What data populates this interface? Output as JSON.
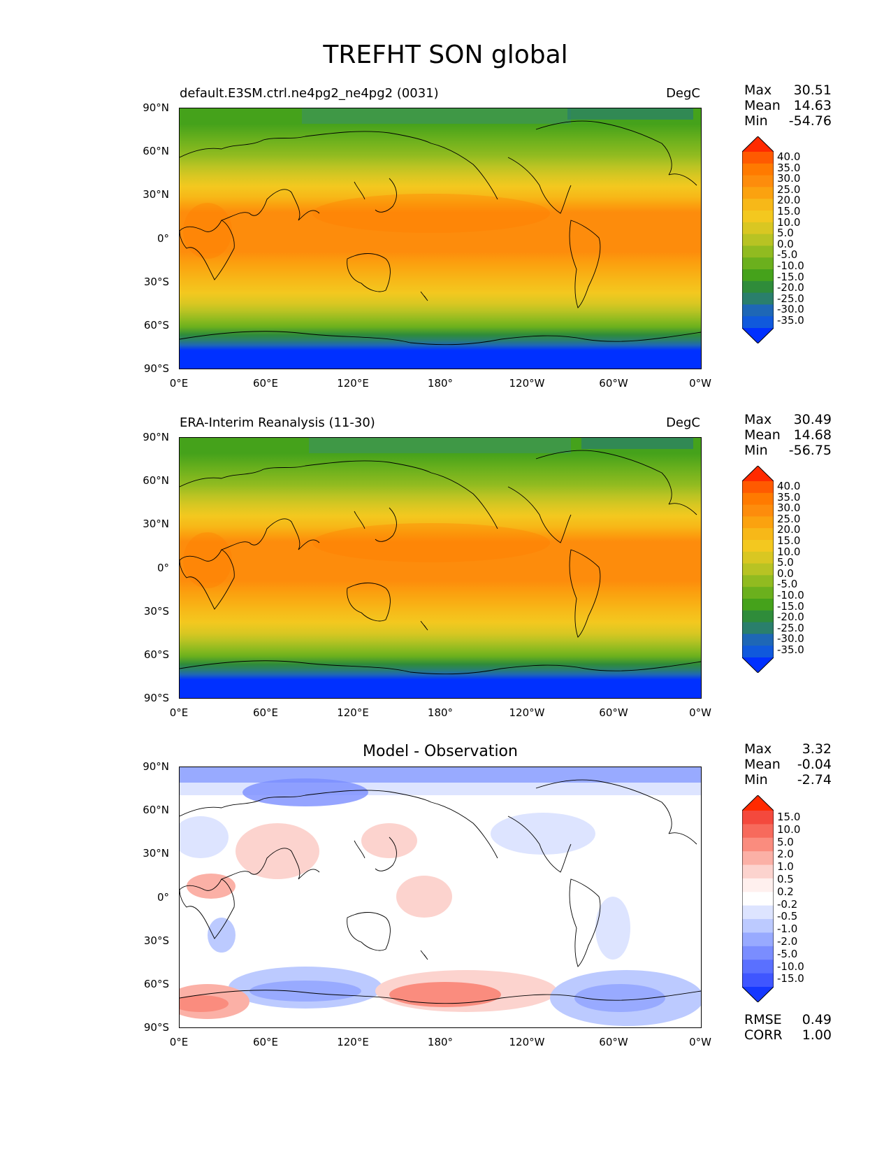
{
  "figure": {
    "title": "TREFHT SON global"
  },
  "axes": {
    "y_ticks": [
      "90°N",
      "60°N",
      "30°N",
      "0°",
      "30°S",
      "60°S",
      "90°S"
    ],
    "x_ticks": [
      "0°E",
      "60°E",
      "120°E",
      "180°",
      "120°W",
      "60°W",
      "0°W"
    ]
  },
  "panels": [
    {
      "title_left": "default.E3SM.ctrl.ne4pg2_ne4pg2 (0031)",
      "title_right": "DegC",
      "stats": {
        "max_label": "Max",
        "max": "30.51",
        "mean_label": "Mean",
        "mean": "14.63",
        "min_label": "Min",
        "min": "-54.76"
      },
      "colorbar": {
        "ticks": [
          "40.0",
          "35.0",
          "30.0",
          "25.0",
          "20.0",
          "15.0",
          "10.0",
          "5.0",
          "0.0",
          "-5.0",
          "-10.0",
          "-15.0",
          "-20.0",
          "-25.0",
          "-30.0",
          "-35.0"
        ]
      }
    },
    {
      "title_left": "ERA-Interim Reanalysis (11-30)",
      "title_right": "DegC",
      "stats": {
        "max_label": "Max",
        "max": "30.49",
        "mean_label": "Mean",
        "mean": "14.68",
        "min_label": "Min",
        "min": "-56.75"
      },
      "colorbar": {
        "ticks": [
          "40.0",
          "35.0",
          "30.0",
          "25.0",
          "20.0",
          "15.0",
          "10.0",
          "5.0",
          "0.0",
          "-5.0",
          "-10.0",
          "-15.0",
          "-20.0",
          "-25.0",
          "-30.0",
          "-35.0"
        ]
      }
    },
    {
      "title_center": "Model - Observation",
      "stats": {
        "max_label": "Max",
        "max": "3.32",
        "mean_label": "Mean",
        "mean": "-0.04",
        "min_label": "Min",
        "min": "-2.74"
      },
      "colorbar": {
        "ticks": [
          "15.0",
          "10.0",
          "5.0",
          "2.0",
          "1.0",
          "0.5",
          "0.2",
          "-0.2",
          "-0.5",
          "-1.0",
          "-2.0",
          "-5.0",
          "-10.0",
          "-15.0"
        ]
      },
      "footer": {
        "rmse_label": "RMSE",
        "rmse": "0.49",
        "corr_label": "CORR",
        "corr": "1.00"
      }
    }
  ],
  "colors": {
    "temp_bands": [
      "#ff2a00",
      "#ff5a00",
      "#ff7a00",
      "#fd8c0c",
      "#fba20f",
      "#f7b818",
      "#f3c81f",
      "#d9c722",
      "#b8c323",
      "#91bb20",
      "#6bb01d",
      "#45a21b",
      "#2f8c3a",
      "#2a7f6c",
      "#1e67b6",
      "#1059dc",
      "#0030ff"
    ],
    "diff_bands": [
      "#ff2a00",
      "#f4493d",
      "#f76a5c",
      "#fa8c7e",
      "#fbb0a6",
      "#fcd3ce",
      "#fff0ee",
      "#ffffff",
      "#dde4ff",
      "#bccaff",
      "#98aaff",
      "#7a8dff",
      "#5a70ff",
      "#3f56ff",
      "#1538ff"
    ]
  }
}
